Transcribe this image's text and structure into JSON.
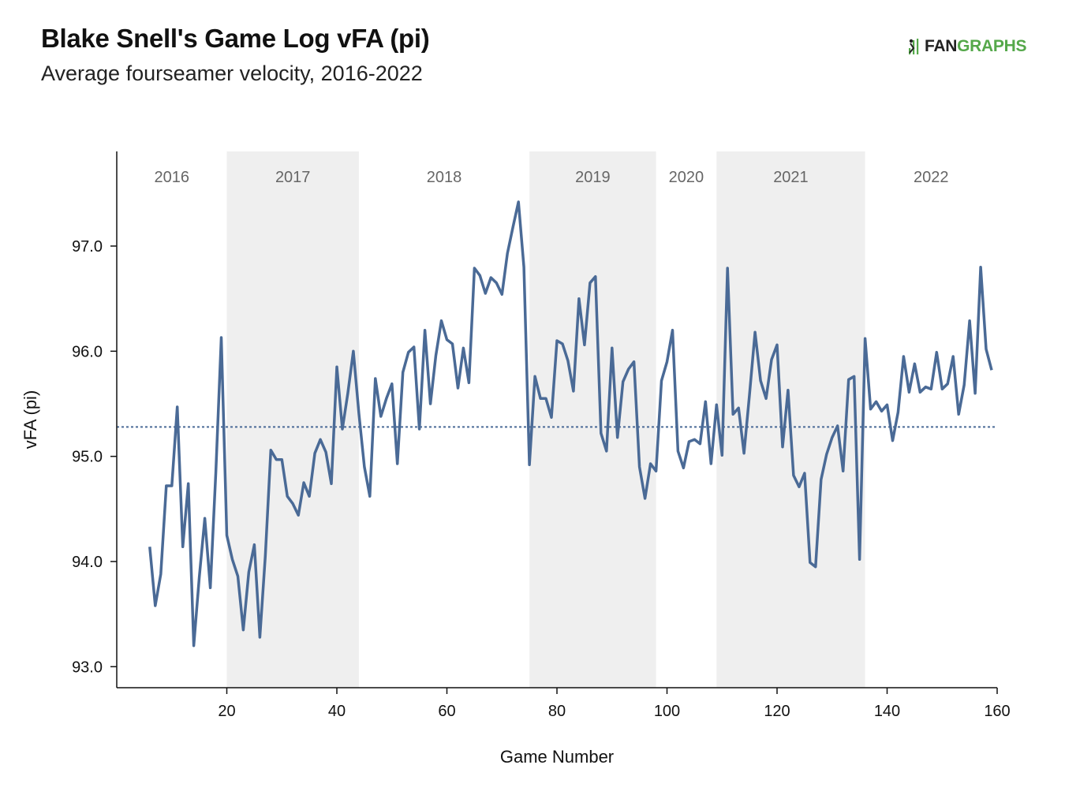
{
  "title": "Blake Snell's Game Log vFA (pi)",
  "subtitle": "Average fourseamer velocity, 2016-2022",
  "logo": {
    "fan": "FAN",
    "graphs": "GRAPHS"
  },
  "colors": {
    "line": "#4a6a96",
    "band": "#efefef",
    "axis": "#111111",
    "mean_line": "#4a6a96"
  },
  "chart_data": {
    "type": "line",
    "xlabel": "Game Number",
    "ylabel": "vFA (pi)",
    "xlim": [
      0,
      160
    ],
    "ylim": [
      92.8,
      97.9
    ],
    "xticks": [
      20,
      40,
      60,
      80,
      100,
      120,
      140,
      160
    ],
    "yticks": [
      93.0,
      94.0,
      95.0,
      96.0,
      97.0
    ],
    "mean_line": 95.28,
    "seasons": [
      {
        "label": "2016",
        "start": 0,
        "end": 20,
        "shaded": false
      },
      {
        "label": "2017",
        "start": 20,
        "end": 44,
        "shaded": true
      },
      {
        "label": "2018",
        "start": 44,
        "end": 75,
        "shaded": false
      },
      {
        "label": "2019",
        "start": 75,
        "end": 98,
        "shaded": true
      },
      {
        "label": "2020",
        "start": 98,
        "end": 109,
        "shaded": false
      },
      {
        "label": "2021",
        "start": 109,
        "end": 136,
        "shaded": true
      },
      {
        "label": "2022",
        "start": 136,
        "end": 160,
        "shaded": false
      }
    ],
    "series": [
      {
        "x": [
          6,
          7,
          8,
          9,
          10,
          11,
          12,
          13,
          14,
          15,
          16,
          17,
          18,
          19,
          20,
          21,
          22,
          23,
          24,
          25,
          26,
          27,
          28,
          29,
          30,
          31,
          32,
          33,
          34,
          35,
          36,
          37,
          38,
          39,
          40,
          41,
          42,
          43,
          44,
          45,
          46,
          47,
          48,
          49,
          50,
          51,
          52,
          53,
          54,
          55,
          56,
          57,
          58,
          59,
          60,
          61,
          62,
          63,
          64,
          65,
          66,
          67,
          68,
          69,
          70,
          71,
          72,
          73,
          74,
          75,
          76,
          77,
          78,
          79,
          80,
          81,
          82,
          83,
          84,
          85,
          86,
          87,
          88,
          89,
          90,
          91,
          92,
          93,
          94,
          95,
          96,
          97,
          98,
          99,
          100,
          101,
          102,
          103,
          104,
          105,
          106,
          107,
          108,
          109,
          110,
          111,
          112,
          113,
          114,
          115,
          116,
          117,
          118,
          119,
          120,
          121,
          122,
          123,
          124,
          125,
          126,
          127,
          128,
          129,
          130,
          131,
          132,
          133,
          134,
          135,
          136,
          137,
          138,
          139,
          140,
          141,
          142,
          143,
          144,
          145,
          146,
          147,
          148,
          149,
          150,
          151,
          152,
          153,
          154,
          155,
          156,
          157,
          158,
          159
        ],
        "values": [
          94.14,
          93.58,
          93.88,
          94.72,
          94.72,
          95.47,
          94.14,
          94.74,
          93.2,
          93.85,
          94.41,
          93.75,
          94.85,
          96.13,
          94.25,
          94.02,
          93.86,
          93.35,
          93.9,
          94.16,
          93.28,
          94.05,
          95.06,
          94.97,
          94.97,
          94.62,
          94.55,
          94.44,
          94.75,
          94.62,
          95.03,
          95.16,
          95.04,
          94.74,
          95.85,
          95.26,
          95.6,
          96.0,
          95.41,
          94.9,
          94.62,
          95.74,
          95.38,
          95.55,
          95.69,
          94.93,
          95.8,
          95.99,
          96.04,
          95.26,
          96.2,
          95.5,
          95.96,
          96.29,
          96.11,
          96.07,
          95.65,
          96.03,
          95.7,
          96.79,
          96.72,
          96.55,
          96.7,
          96.65,
          96.54,
          96.93,
          97.18,
          97.42,
          96.8,
          94.92,
          95.76,
          95.55,
          95.55,
          95.37,
          96.1,
          96.07,
          95.91,
          95.62,
          96.5,
          96.06,
          96.65,
          96.71,
          95.22,
          95.05,
          96.03,
          95.18,
          95.71,
          95.83,
          95.9,
          94.9,
          94.6,
          94.93,
          94.86,
          95.72,
          95.9,
          96.2,
          95.05,
          94.89,
          95.14,
          95.16,
          95.12,
          95.52,
          94.93,
          95.49,
          95.01,
          96.79,
          95.4,
          95.46,
          95.03,
          95.59,
          96.18,
          95.72,
          95.55,
          95.92,
          96.06,
          95.09,
          95.63,
          94.82,
          94.71,
          94.84,
          93.99,
          93.95,
          94.78,
          95.02,
          95.18,
          95.29,
          94.86,
          95.73,
          95.76,
          94.02,
          96.12,
          95.45,
          95.52,
          95.43,
          95.49,
          95.15,
          95.42,
          95.95,
          95.61,
          95.88,
          95.61,
          95.66,
          95.64,
          95.99,
          95.64,
          95.69,
          95.95,
          95.4,
          95.68,
          96.29,
          95.6,
          96.8,
          96.02,
          95.82
        ]
      }
    ]
  }
}
